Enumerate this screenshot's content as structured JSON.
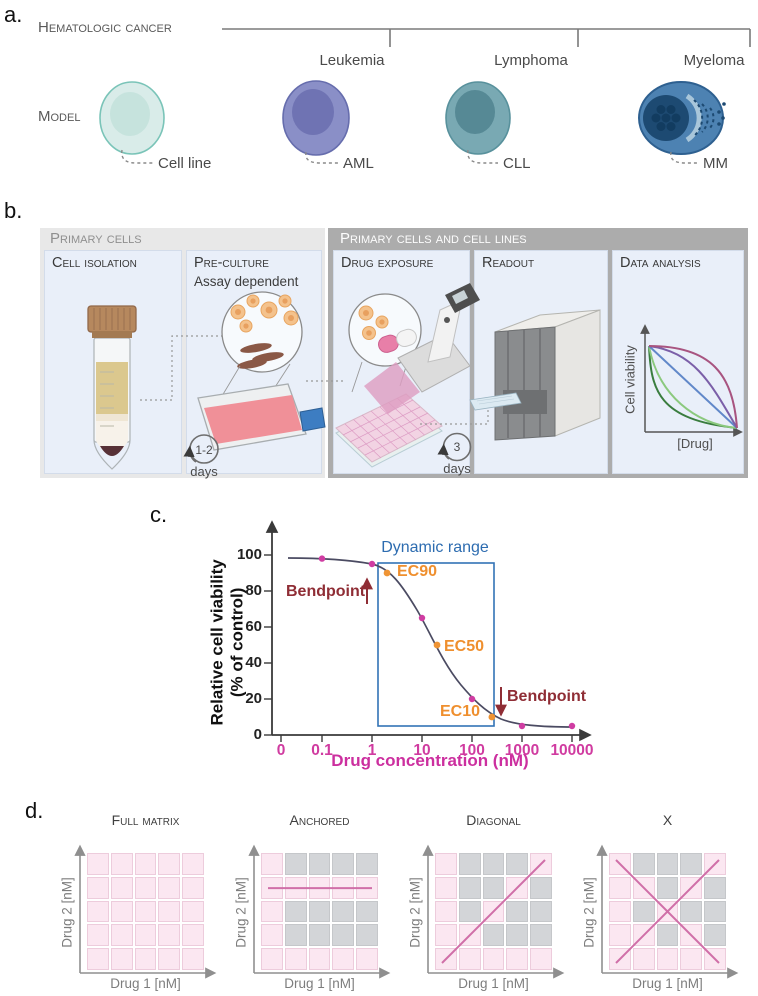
{
  "letters": {
    "a": "a.",
    "b": "b.",
    "c": "c.",
    "d": "d."
  },
  "panel_a": {
    "group_label": "Hematologic cancer",
    "model_label": "Model",
    "categories": [
      "Leukemia",
      "Lymphoma",
      "Myeloma"
    ],
    "models": [
      {
        "name": "Cell line",
        "icon": "cell-line-cell"
      },
      {
        "name": "AML",
        "icon": "aml-cell"
      },
      {
        "name": "CLL",
        "icon": "cll-cell"
      },
      {
        "name": "MM",
        "icon": "mm-cell"
      }
    ]
  },
  "panel_b": {
    "group1_header": "Primary cells",
    "group2_header": "Primary cells and cell lines",
    "steps": [
      {
        "title": "Cell isolation"
      },
      {
        "title": "Pre-culture",
        "subtitle": "Assay dependent"
      },
      {
        "title": "Drug exposure"
      },
      {
        "title": "Readout"
      },
      {
        "title": "Data analysis"
      }
    ],
    "timer1": {
      "value": "1-2",
      "unit": "days"
    },
    "timer2": {
      "value": "3",
      "unit": "days"
    },
    "mini_chart": {
      "ylabel": "Cell viability",
      "xlabel": "[Drug]",
      "curve_colors": [
        "#3a7d3f",
        "#8bc97e",
        "#6188c9",
        "#7b5fa8",
        "#a85480"
      ]
    }
  },
  "chart_data": {
    "type": "line",
    "xlabel": "Drug concentration (nM)",
    "ylabel_line1": "Relative cell viability",
    "ylabel_line2": "(% of control)",
    "x_scale": "log",
    "x_ticks": [
      "0",
      "0.1",
      "1",
      "10",
      "100",
      "1000",
      "10000"
    ],
    "x_tick_values": [
      0,
      0.1,
      1,
      10,
      100,
      1000,
      10000
    ],
    "y_ticks": [
      0,
      20,
      40,
      60,
      80,
      100
    ],
    "points": [
      {
        "x": 0.1,
        "y": 98
      },
      {
        "x": 1,
        "y": 95
      },
      {
        "x": 10,
        "y": 65
      },
      {
        "x": 100,
        "y": 20
      },
      {
        "x": 1000,
        "y": 5
      },
      {
        "x": 10000,
        "y": 5
      }
    ],
    "ec_points": [
      {
        "label": "EC90",
        "x": 2,
        "y": 90
      },
      {
        "label": "EC50",
        "x": 20,
        "y": 50
      },
      {
        "label": "EC10",
        "x": 250,
        "y": 10
      }
    ],
    "annotations": {
      "dynamic_range": "Dynamic range",
      "bendpoint_left": "Bendpoint",
      "bendpoint_right": "Bendpoint"
    },
    "dynamic_range_box": {
      "x_from": 1.3,
      "x_to": 250,
      "y_from": 5,
      "y_to": 95.5
    }
  },
  "panel_d": {
    "ylabel": "Drug 2 [nM]",
    "xlabel": "Drug 1 [nM]",
    "grids": [
      {
        "title": "Full matrix",
        "pattern": [
          "PPPPP",
          "PPPPP",
          "PPPPP",
          "PPPPP",
          "PPPPP"
        ],
        "line": "none"
      },
      {
        "title": "Anchored",
        "pattern": [
          "PGGGG",
          "PPPPP",
          "PGGGG",
          "PGGGG",
          "PPPPP"
        ],
        "line": "horizontal"
      },
      {
        "title": "Diagonal",
        "pattern": [
          "PGGGP",
          "PGGPG",
          "PGPGG",
          "PPGGG",
          "PPPPP"
        ],
        "line": "diagonal"
      },
      {
        "title": "X",
        "pattern": [
          "PGGGP",
          "PPGPG",
          "PGPGG",
          "PPGPG",
          "PPPPP"
        ],
        "line": "x"
      }
    ]
  },
  "colors": {
    "point_magenta": "#cf3da2",
    "ec_orange": "#ef9434",
    "dyn_blue": "#3273b5",
    "bend_red": "#8f2d35",
    "grid_pink": "#fbe7f1",
    "grid_gray": "#d3d5d8",
    "grid_line": "#d06fa8"
  }
}
